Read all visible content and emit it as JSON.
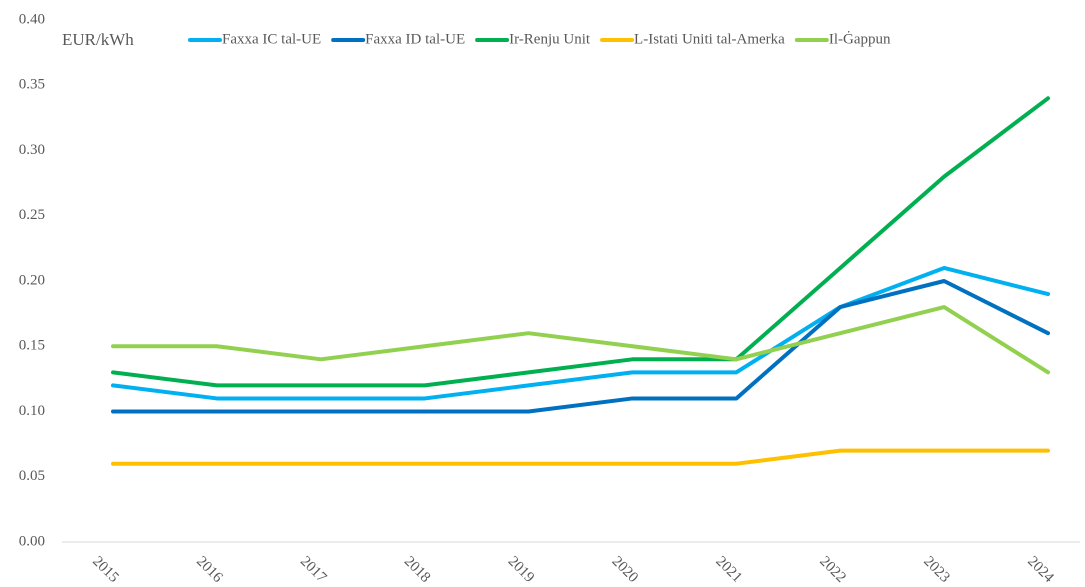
{
  "chart_data": {
    "type": "line",
    "y_axis_label": "EUR/kWh",
    "categories": [
      "2015",
      "2016",
      "2017",
      "2018",
      "2019",
      "2020",
      "2021",
      "2022",
      "2023",
      "2024"
    ],
    "series": [
      {
        "name": "Faxxa IC tal-UE",
        "color": "#00b0f0",
        "values": [
          0.12,
          0.11,
          0.11,
          0.11,
          0.12,
          0.13,
          0.13,
          0.18,
          0.21,
          0.19
        ]
      },
      {
        "name": "Faxxa ID tal-UE",
        "color": "#0070c0",
        "values": [
          0.1,
          0.1,
          0.1,
          0.1,
          0.1,
          0.11,
          0.11,
          0.18,
          0.2,
          0.16
        ]
      },
      {
        "name": "Ir-Renju Unit",
        "color": "#00b050",
        "values": [
          0.13,
          0.12,
          0.12,
          0.12,
          0.13,
          0.14,
          0.14,
          0.21,
          0.28,
          0.34
        ]
      },
      {
        "name": "L-Istati Uniti tal-Amerka",
        "color": "#ffc000",
        "values": [
          0.06,
          0.06,
          0.06,
          0.06,
          0.06,
          0.06,
          0.06,
          0.07,
          0.07,
          0.07
        ]
      },
      {
        "name": "Il-Ġappun",
        "color": "#92d050",
        "values": [
          0.15,
          0.15,
          0.14,
          0.15,
          0.16,
          0.15,
          0.14,
          0.16,
          0.18,
          0.13
        ]
      }
    ],
    "ylim": [
      0,
      0.4
    ],
    "yticks": [
      {
        "value": 0,
        "label": "0.00"
      },
      {
        "value": 0.05,
        "label": "0.05"
      },
      {
        "value": 0.1,
        "label": "0.10"
      },
      {
        "value": 0.15,
        "label": "0.15"
      },
      {
        "value": 0.2,
        "label": "0.20"
      },
      {
        "value": 0.25,
        "label": "0.25"
      },
      {
        "value": 0.3,
        "label": "0.30"
      },
      {
        "value": 0.35,
        "label": "0.35"
      },
      {
        "value": 0.4,
        "label": "0.40"
      }
    ],
    "legend": "top"
  }
}
